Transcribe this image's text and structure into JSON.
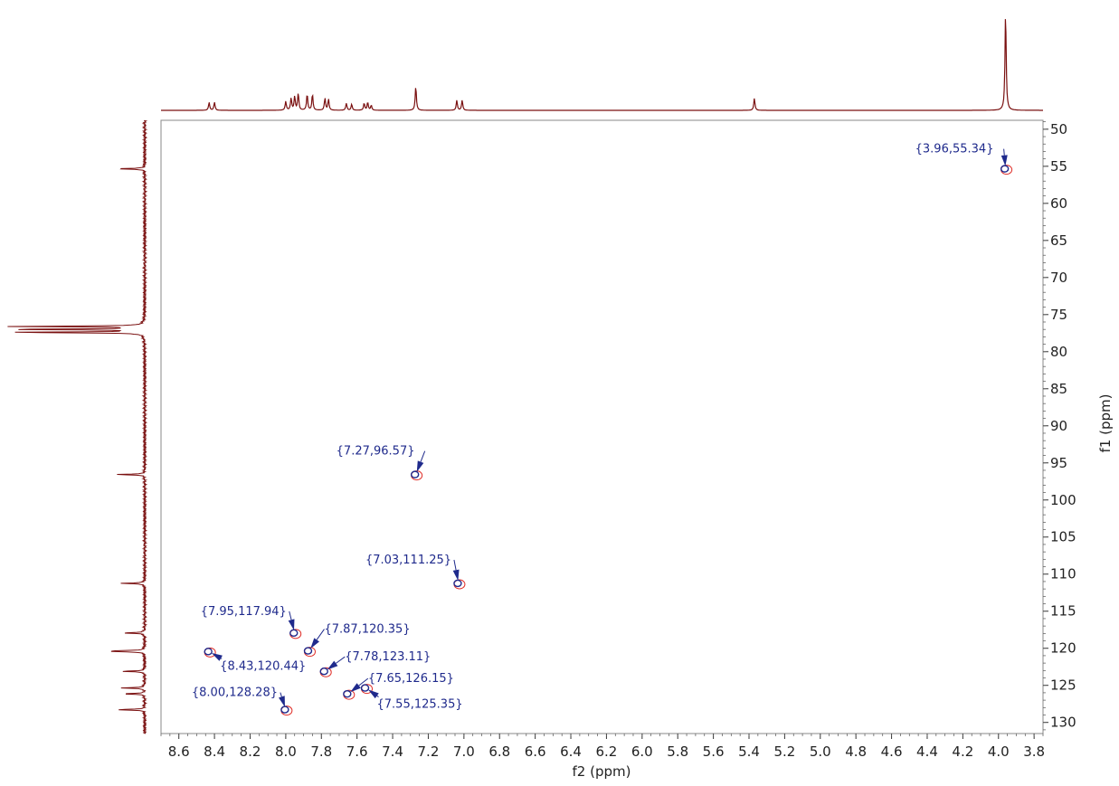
{
  "chart_data": {
    "type": "scatter",
    "subtype": "2D NMR HSQC contour plot",
    "xlabel": "f2 (ppm)",
    "ylabel": "f1 (ppm)",
    "xlim": [
      8.7,
      3.75
    ],
    "ylim": [
      48.8,
      131.5
    ],
    "x_ticks": [
      8.6,
      8.4,
      8.2,
      8.0,
      7.8,
      7.6,
      7.4,
      7.2,
      7.0,
      6.8,
      6.6,
      6.4,
      6.2,
      6.0,
      5.8,
      5.6,
      5.4,
      5.2,
      5.0,
      4.8,
      4.6,
      4.4,
      4.2,
      4.0,
      3.8
    ],
    "y_ticks": [
      50,
      55,
      60,
      65,
      70,
      75,
      80,
      85,
      90,
      95,
      100,
      105,
      110,
      115,
      120,
      125,
      130
    ],
    "x_tick_labels": [
      "8.6",
      "8.4",
      "8.2",
      "8.0",
      "7.8",
      "7.6",
      "7.4",
      "7.2",
      "7.0",
      "6.8",
      "6.6",
      "6.4",
      "6.2",
      "6.0",
      "5.8",
      "5.6",
      "5.4",
      "5.2",
      "5.0",
      "4.8",
      "4.6",
      "4.4",
      "4.2",
      "4.0",
      "3.8"
    ],
    "y_tick_labels": [
      "50",
      "55",
      "60",
      "65",
      "70",
      "75",
      "80",
      "85",
      "90",
      "95",
      "100",
      "105",
      "110",
      "115",
      "120",
      "125",
      "130"
    ],
    "grid": false,
    "colors": {
      "spectrum": "#7a1010",
      "positive_contour": "#1f2a8c",
      "negative_contour": "#e0302a",
      "label": "#1f2a8c"
    },
    "cross_peaks": [
      {
        "label": "{3.96,55.34}",
        "x": 3.96,
        "y": 55.34
      },
      {
        "label": "{7.27,96.57}",
        "x": 7.27,
        "y": 96.57
      },
      {
        "label": "{7.03,111.25}",
        "x": 7.03,
        "y": 111.25
      },
      {
        "label": "{7.95,117.94}",
        "x": 7.95,
        "y": 117.94
      },
      {
        "label": "{7.87,120.35}",
        "x": 7.87,
        "y": 120.35
      },
      {
        "label": "{7.78,123.11}",
        "x": 7.78,
        "y": 123.11
      },
      {
        "label": "{8.43,120.44}",
        "x": 8.43,
        "y": 120.44
      },
      {
        "label": "{7.65,126.15}",
        "x": 7.65,
        "y": 126.15
      },
      {
        "label": "{8.00,128.28}",
        "x": 8.0,
        "y": 128.28
      },
      {
        "label": "{7.55,125.35}",
        "x": 7.55,
        "y": 125.35
      }
    ],
    "f2_projection_peaks": [
      {
        "x": 8.43,
        "h": 0.08
      },
      {
        "x": 8.4,
        "h": 0.08
      },
      {
        "x": 8.0,
        "h": 0.09
      },
      {
        "x": 7.97,
        "h": 0.12
      },
      {
        "x": 7.95,
        "h": 0.14
      },
      {
        "x": 7.93,
        "h": 0.17
      },
      {
        "x": 7.88,
        "h": 0.16
      },
      {
        "x": 7.85,
        "h": 0.16
      },
      {
        "x": 7.78,
        "h": 0.12
      },
      {
        "x": 7.76,
        "h": 0.11
      },
      {
        "x": 7.66,
        "h": 0.07
      },
      {
        "x": 7.63,
        "h": 0.06
      },
      {
        "x": 7.56,
        "h": 0.07
      },
      {
        "x": 7.54,
        "h": 0.08
      },
      {
        "x": 7.52,
        "h": 0.05
      },
      {
        "x": 7.27,
        "h": 0.24
      },
      {
        "x": 7.04,
        "h": 0.1
      },
      {
        "x": 7.01,
        "h": 0.1
      },
      {
        "x": 5.37,
        "h": 0.12
      },
      {
        "x": 3.96,
        "h": 1.0
      }
    ],
    "f1_projection_peaks": [
      {
        "y": 55.34,
        "h": 0.2
      },
      {
        "y": 76.6,
        "h": 1.0
      },
      {
        "y": 77.0,
        "h": 1.0
      },
      {
        "y": 77.4,
        "h": 1.0
      },
      {
        "y": 96.57,
        "h": 0.2
      },
      {
        "y": 111.25,
        "h": 0.18
      },
      {
        "y": 117.94,
        "h": 0.17
      },
      {
        "y": 120.35,
        "h": 0.19
      },
      {
        "y": 120.44,
        "h": 0.18
      },
      {
        "y": 123.11,
        "h": 0.17
      },
      {
        "y": 125.35,
        "h": 0.17
      },
      {
        "y": 126.15,
        "h": 0.16
      },
      {
        "y": 128.28,
        "h": 0.2
      }
    ]
  }
}
